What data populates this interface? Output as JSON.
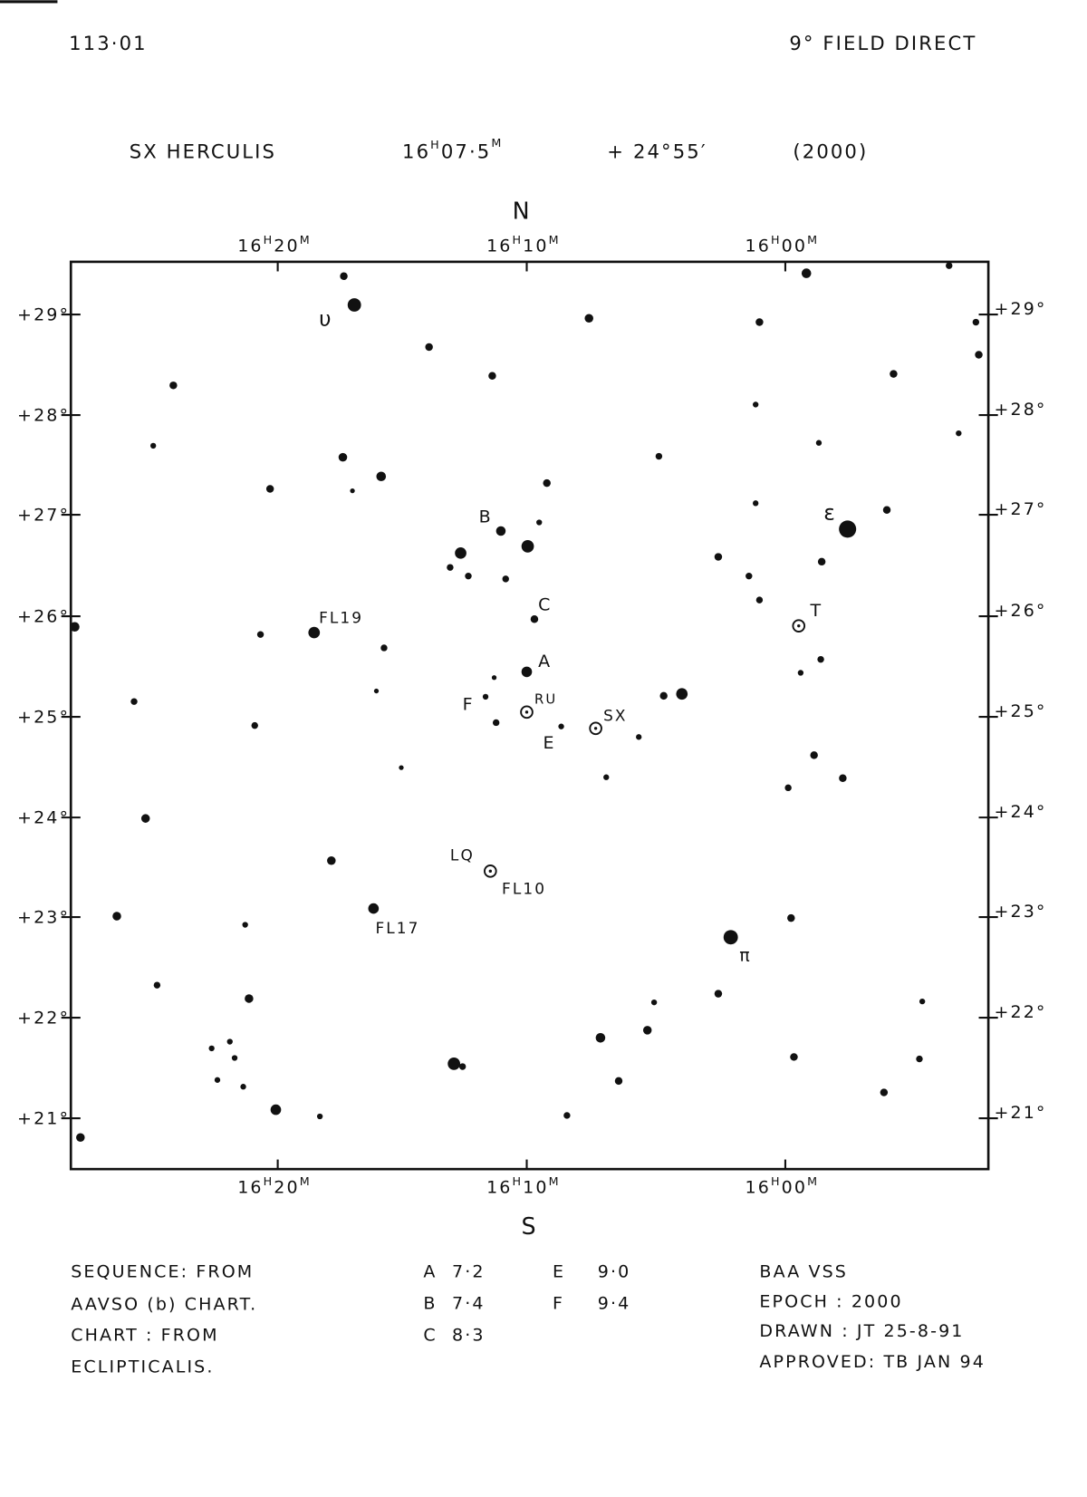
{
  "header": {
    "chart_id": "113·01",
    "field": "9° FIELD DIRECT"
  },
  "title": {
    "star": "SX HERCULIS",
    "ra_hours": "16",
    "ra_minutes": "07·5",
    "dec": "+ 24°55′",
    "epoch": "(2000)"
  },
  "units": {
    "h": "H",
    "m": "M"
  },
  "compass": {
    "north": "N",
    "south": "S"
  },
  "ra_labels": [
    {
      "hours": "16",
      "minutes": "20"
    },
    {
      "hours": "16",
      "minutes": "10"
    },
    {
      "hours": "16",
      "minutes": "00"
    }
  ],
  "dec_labels": [
    "+29°",
    "+28°",
    "+27°",
    "+26°",
    "+25°",
    "+24°",
    "+23°",
    "+22°",
    "+21°"
  ],
  "star_labels": [
    "υ",
    "B",
    "C",
    "A",
    "F",
    "RU",
    "E",
    "SX",
    "FL19",
    "T",
    "ε",
    "LQ",
    "FL10",
    "FL17",
    "π"
  ],
  "footer": {
    "notes": [
      "SEQUENCE:   FROM",
      "AAVSO (b) CHART.",
      "CHART :  FROM",
      "ECLIPTICALIS."
    ],
    "sequence": [
      {
        "star": "A",
        "mag": "7·2"
      },
      {
        "star": "B",
        "mag": "7·4"
      },
      {
        "star": "C",
        "mag": "8·3"
      },
      {
        "star": "E",
        "mag": "9·0"
      },
      {
        "star": "F",
        "mag": "9·4"
      }
    ],
    "credits": [
      "BAA  VSS",
      "EPOCH :  2000",
      "DRAWN : JT 25-8-91",
      "APPROVED: TB JAN 94"
    ]
  }
}
